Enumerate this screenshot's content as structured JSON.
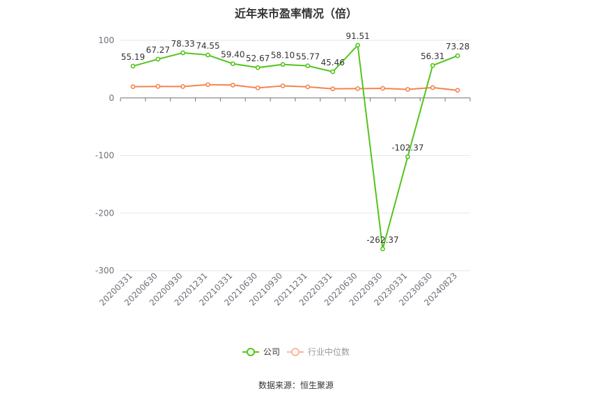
{
  "chart_data": {
    "type": "line",
    "title": "近年来市盈率情况（倍）",
    "x": [
      "20200331",
      "20200630",
      "20200930",
      "20201231",
      "20210331",
      "20210630",
      "20210930",
      "20211231",
      "20220331",
      "20220630",
      "20220930",
      "20230331",
      "20230630",
      "20240823"
    ],
    "ylim": [
      -300,
      100
    ],
    "yticks": [
      100,
      0,
      -100,
      -200,
      -300
    ],
    "grid": true,
    "legend_position": "bottom-center",
    "series": [
      {
        "name": "公司",
        "color": "#52c41a",
        "values": [
          55.19,
          67.27,
          78.33,
          74.55,
          59.4,
          52.67,
          58.1,
          55.77,
          45.46,
          91.51,
          -262.37,
          -102.37,
          56.31,
          73.28
        ],
        "labels": [
          "55.19",
          "67.27",
          "78.33",
          "74.55",
          "59.40",
          "52.67",
          "58.10",
          "55.77",
          "45.46",
          "91.51",
          "-262.37",
          "-102.37",
          "56.31",
          "73.28"
        ]
      },
      {
        "name": "行业中位数",
        "color": "#f5844b",
        "values": [
          19.5,
          20.0,
          19.8,
          23.0,
          22.3,
          17.4,
          21.0,
          19.2,
          15.8,
          16.2,
          16.6,
          14.8,
          17.9,
          13.2
        ]
      }
    ],
    "source": "数据来源：恒生聚源"
  }
}
